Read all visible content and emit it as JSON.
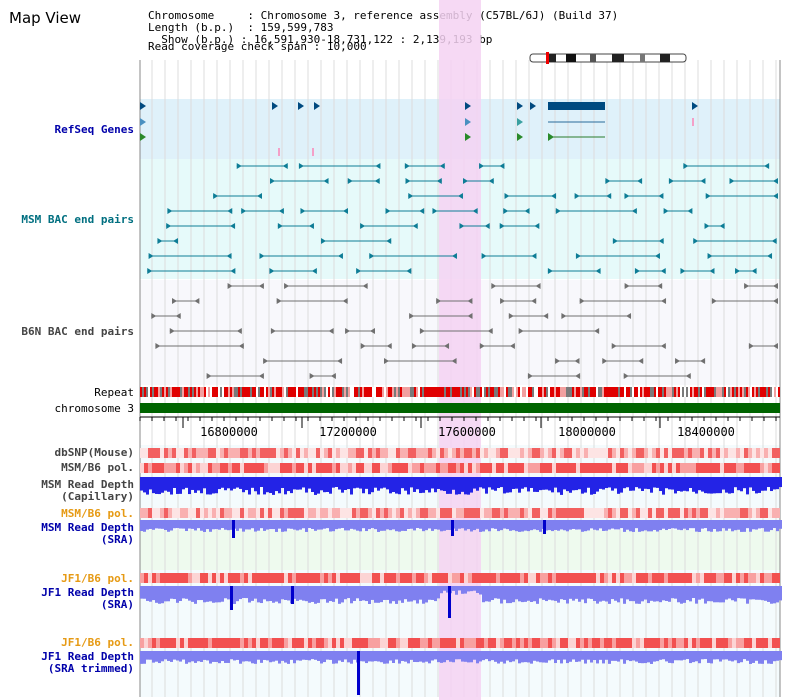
{
  "title": "Map View",
  "info": {
    "chromosome_label": "Chromosome",
    "chromosome_value": "Chromosome 3, reference assembly (C57BL/6J) (Build 37)",
    "length_label": "Length (b.p.)",
    "length_value": "159,599,783",
    "show_label": "Show (b.p.)",
    "show_value": "16,591,930-18,731,122 : 2,139,193 bp",
    "coverage_label": "Read coverage check span",
    "coverage_value": "10,000"
  },
  "tracks": {
    "refseq": "RefSeq Genes",
    "msm_bac": "MSM BAC end pairs",
    "b6n_bac": "B6N BAC end pairs",
    "repeat": "Repeat",
    "chromosome": "chromosome 3",
    "dbsnp": "dbSNP(Mouse)",
    "msm_b6_pol": "MSM/B6 pol.",
    "msm_depth_cap_1": "MSM Read Depth",
    "msm_depth_cap_2": "(Capillary)",
    "msm_b6_pol_2": "MSM/B6 pol.",
    "msm_depth_sra_1": "MSM Read Depth",
    "msm_depth_sra_2": "(SRA)",
    "jf1_b6_pol": "JF1/B6 pol.",
    "jf1_depth_sra_1": "JF1 Read Depth",
    "jf1_depth_sra_2": "(SRA)",
    "jf1_b6_pol_2": "JF1/B6 pol.",
    "jf1_depth_trim_1": "JF1 Read Depth",
    "jf1_depth_trim_2": "(SRA trimmed)"
  },
  "axis": {
    "ticks": [
      "16800000",
      "17200000",
      "17600000",
      "18000000",
      "18400000"
    ]
  },
  "colors": {
    "refseq_bg": "#dff1fa",
    "msm_bg": "#e6fafa",
    "highlight": "#f5d2f2",
    "chromosome_bar": "#006400",
    "depth_blue": "#2323e6",
    "depth_light": "#7f80f0"
  }
}
